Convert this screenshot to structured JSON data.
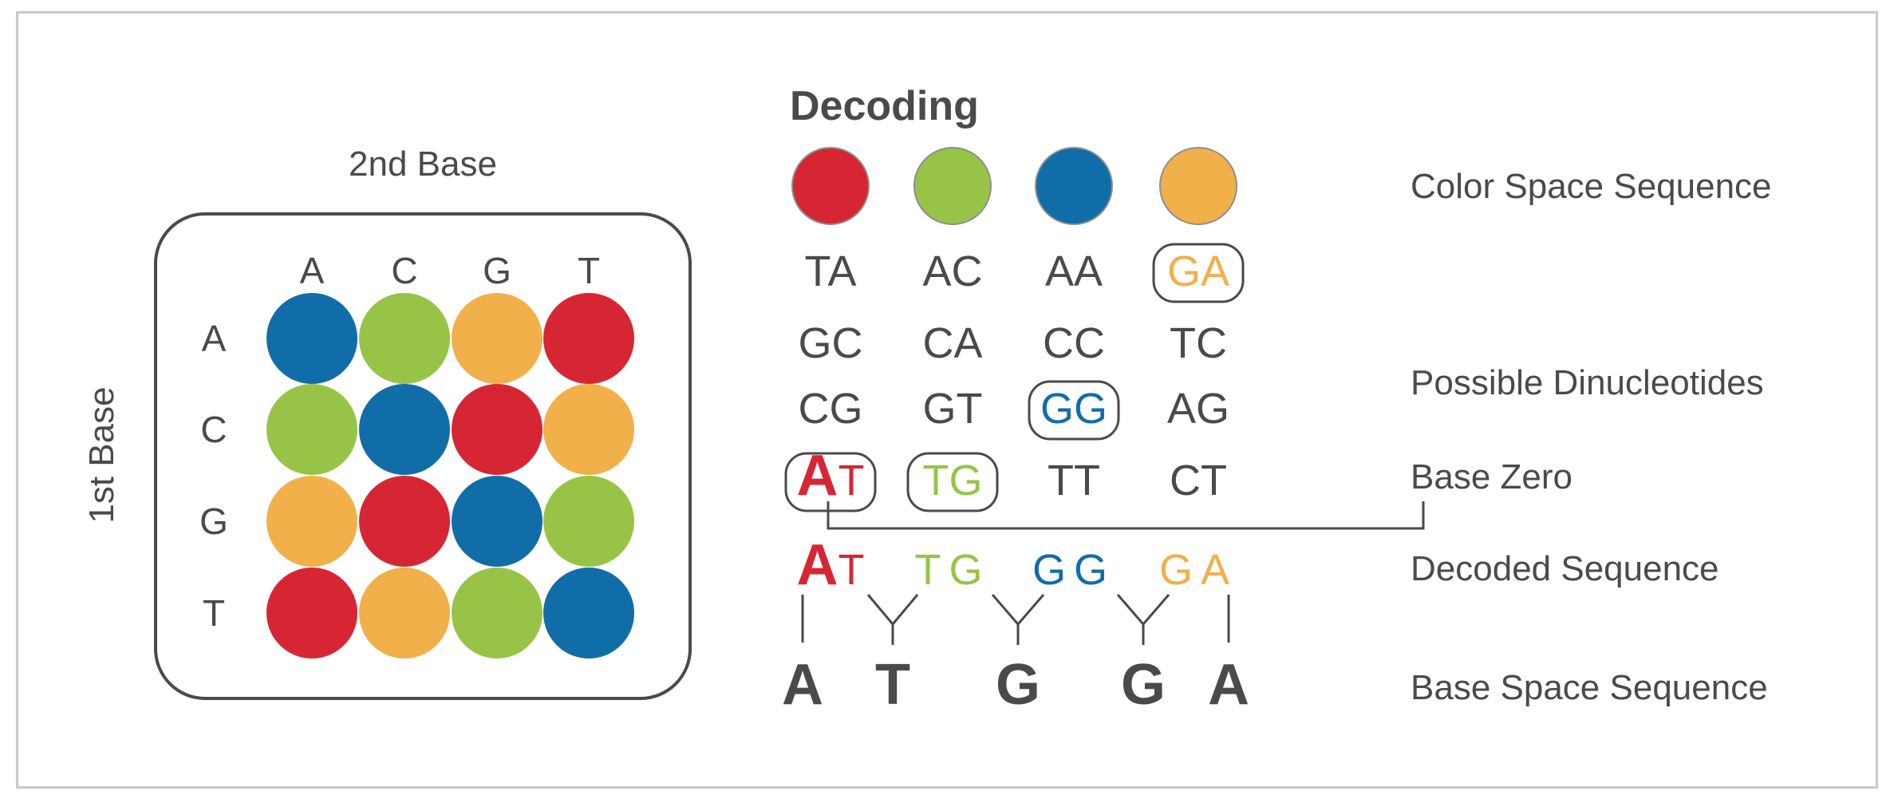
{
  "colors": {
    "red": "#d72633",
    "green": "#97c447",
    "blue": "#116da8",
    "orange": "#f1b04a",
    "text": "#4a4a4a",
    "line": "#4a4a4a"
  },
  "matrix": {
    "second_base_label": "2nd Base",
    "first_base_label": "1st Base",
    "column_bases": [
      "A",
      "C",
      "G",
      "T"
    ],
    "row_bases": [
      "A",
      "C",
      "G",
      "T"
    ],
    "cell_colors": [
      [
        "blue",
        "green",
        "orange",
        "red"
      ],
      [
        "green",
        "blue",
        "red",
        "orange"
      ],
      [
        "orange",
        "red",
        "blue",
        "green"
      ],
      [
        "red",
        "orange",
        "green",
        "blue"
      ]
    ]
  },
  "decoding": {
    "title": "Decoding",
    "color_space_sequence": [
      "red",
      "green",
      "blue",
      "orange"
    ],
    "dinucleotide_rows": [
      [
        "TA",
        "AC",
        "AA",
        "GA"
      ],
      [
        "GC",
        "CA",
        "CC",
        "TC"
      ],
      [
        "CG",
        "GT",
        "GG",
        "AG"
      ],
      [
        "AT",
        "TG",
        "TT",
        "CT"
      ]
    ],
    "selected": [
      {
        "column": 0,
        "row": 3
      },
      {
        "column": 1,
        "row": 3
      },
      {
        "column": 2,
        "row": 2
      },
      {
        "column": 3,
        "row": 0
      }
    ],
    "base_zero": "A",
    "decoded_sequence": [
      "AT",
      "TG",
      "GG",
      "GA"
    ],
    "base_space_sequence": [
      "A",
      "T",
      "G",
      "G",
      "A"
    ]
  },
  "labels": {
    "color_space_sequence": "Color Space Sequence",
    "possible_dinucleotides": "Possible Dinucleotides",
    "base_zero": "Base Zero",
    "decoded_sequence": "Decoded Sequence",
    "base_space_sequence": "Base Space Sequence"
  }
}
